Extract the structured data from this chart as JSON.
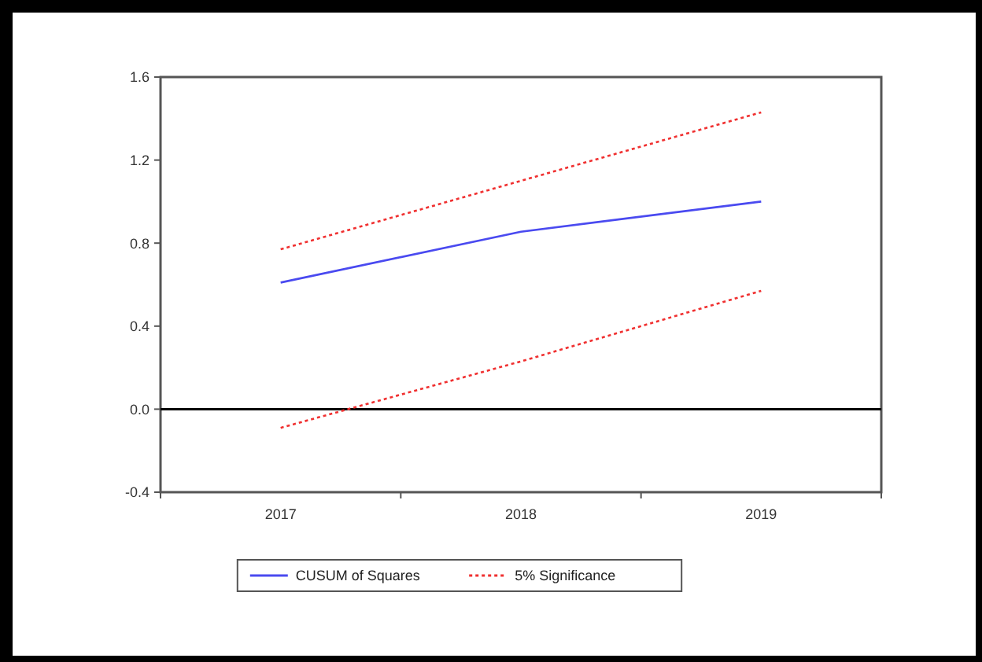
{
  "chart_data": {
    "type": "line",
    "categories": [
      "2017",
      "2018",
      "2019"
    ],
    "series": [
      {
        "name": "CUSUM of Squares",
        "color": "#4a4af0",
        "values": [
          0.61,
          0.855,
          1.0
        ],
        "line_style": "solid"
      },
      {
        "name": "5% Significance",
        "color": "#f03030",
        "values": [
          0.77,
          1.1,
          1.43
        ],
        "line_style": "dotted"
      },
      {
        "color": "#f03030",
        "values": [
          -0.09,
          0.23,
          0.57
        ],
        "line_style": "dotted"
      }
    ],
    "ylim": [
      -0.4,
      1.6
    ],
    "yticks": [
      {
        "value": -0.4,
        "label": "-0.4"
      },
      {
        "value": 0,
        "label": "0.0"
      },
      0.4,
      0.8,
      1.2,
      1.6
    ],
    "ref_lines": [
      {
        "axis": "y",
        "value": 0,
        "color": "#000000"
      }
    ],
    "legend": "bottom",
    "grid": false,
    "marker": "none"
  }
}
